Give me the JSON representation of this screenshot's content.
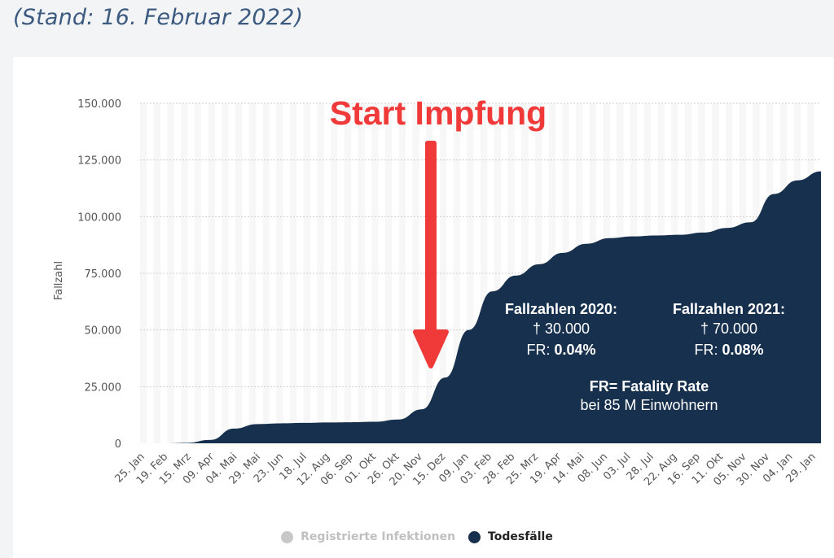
{
  "subtitle": "(Stand: 16. Februar 2022)",
  "colors": {
    "series": "#16304d",
    "inactive": "#c8c8c8",
    "annotation": "#f03a3a",
    "axis_text": "#555555",
    "subtitle": "#3c5a80"
  },
  "chart_data": {
    "type": "area",
    "ylabel": "Fallzahl",
    "ylim": [
      0,
      150000
    ],
    "yticks": [
      "0",
      "25.000",
      "50.000",
      "75.000",
      "100.000",
      "125.000",
      "150.000"
    ],
    "x_tick_labels": [
      "25. Jan",
      "19. Feb",
      "15. Mrz",
      "09. Apr",
      "04. Mai",
      "29. Mai",
      "23. Jun",
      "18. Jul",
      "12. Aug",
      "06. Sep",
      "01. Okt",
      "26. Okt",
      "20. Nov",
      "15. Dez",
      "09. Jan",
      "03. Feb",
      "28. Feb",
      "25. Mrz",
      "19. Apr",
      "14. Mai",
      "08. Jun",
      "03. Jul",
      "28. Jul",
      "22. Aug",
      "16. Sep",
      "11. Okt",
      "05. Nov",
      "30. Nov",
      "04. Jan",
      "29. Jan"
    ],
    "series": [
      {
        "name": "Todesfälle",
        "color": "#16304d",
        "values": [
          0,
          0,
          200,
          1500,
          6500,
          8500,
          8800,
          9000,
          9200,
          9300,
          9500,
          10500,
          15000,
          29000,
          50000,
          67000,
          74000,
          79000,
          84000,
          88000,
          90500,
          91300,
          91700,
          92000,
          93000,
          95000,
          97500,
          110000,
          116000,
          120000
        ]
      }
    ],
    "legend": [
      {
        "label": "Registrierte Infektionen",
        "color": "#c8c8c8",
        "active": false
      },
      {
        "label": "Todesfälle",
        "color": "#16304d",
        "active": true
      }
    ],
    "annotations": {
      "headline": "Start Impfung",
      "box2020_title": "Fallzahlen 2020:",
      "box2020_deaths": "† 30.000",
      "box2020_fr_label": "FR: ",
      "box2020_fr_value": "0.04%",
      "box2021_title": "Fallzahlen 2021:",
      "box2021_deaths": "† 70.000",
      "box2021_fr_label": "FR: ",
      "box2021_fr_value": "0.08%",
      "definition": "FR= Fatality Rate",
      "population": "bei 85 M Einwohnern"
    }
  }
}
